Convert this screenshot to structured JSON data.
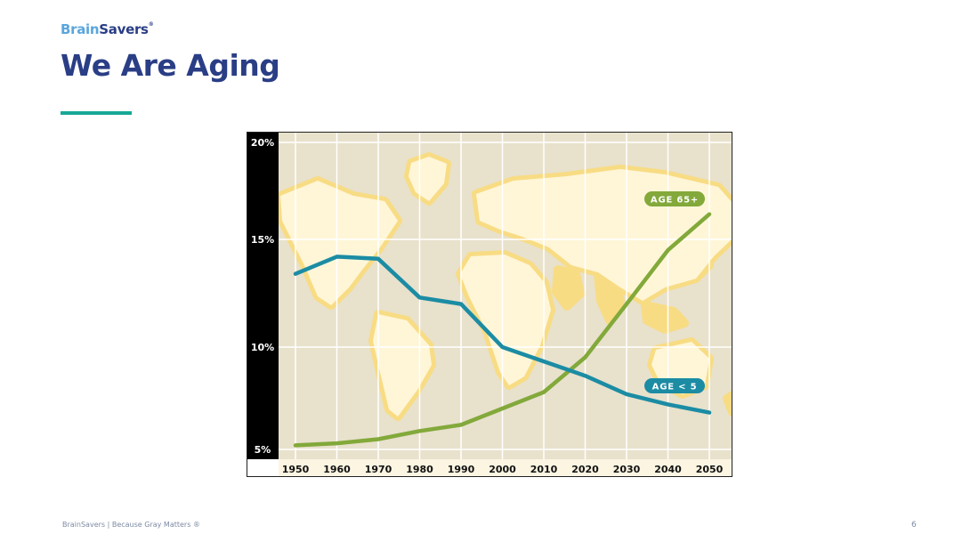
{
  "brand": {
    "part1": "Brain",
    "part2": "Savers",
    "mark": "®"
  },
  "slide": {
    "title": "We Are Aging"
  },
  "footer": {
    "text": "BrainSavers  |  Because Gray Matters ®",
    "page": "6"
  },
  "colors": {
    "brand_light": "#5aa6dc",
    "brand_dark": "#2a3e86",
    "accent": "#17a896",
    "series_65": "#82a93a",
    "series_5": "#1b8ca4"
  },
  "chart_data": {
    "type": "line",
    "title": "",
    "xlabel": "",
    "ylabel": "",
    "x": [
      1950,
      1960,
      1970,
      1980,
      1990,
      2000,
      2010,
      2020,
      2030,
      2040,
      2050
    ],
    "x_tick_labels": [
      "1950",
      "1960",
      "1970",
      "1980",
      "1990",
      "2000",
      "2010",
      "2020",
      "2030",
      "2040",
      "2050"
    ],
    "y_ticks": [
      5,
      10,
      15,
      20
    ],
    "y_tick_labels": [
      "5%",
      "10%",
      "15%",
      "20%"
    ],
    "ylim": [
      5,
      20
    ],
    "grid": true,
    "background": "world map",
    "series": [
      {
        "name": "AGE 65+",
        "color": "#82a93a",
        "values": [
          5.2,
          5.3,
          5.5,
          5.9,
          6.2,
          7.0,
          7.8,
          9.5,
          12.0,
          14.5,
          16.3
        ]
      },
      {
        "name": "AGE < 5",
        "color": "#1b8ca4",
        "values": [
          13.4,
          14.2,
          14.1,
          12.3,
          12.0,
          10.0,
          9.3,
          8.6,
          7.7,
          7.2,
          6.8
        ]
      }
    ]
  }
}
